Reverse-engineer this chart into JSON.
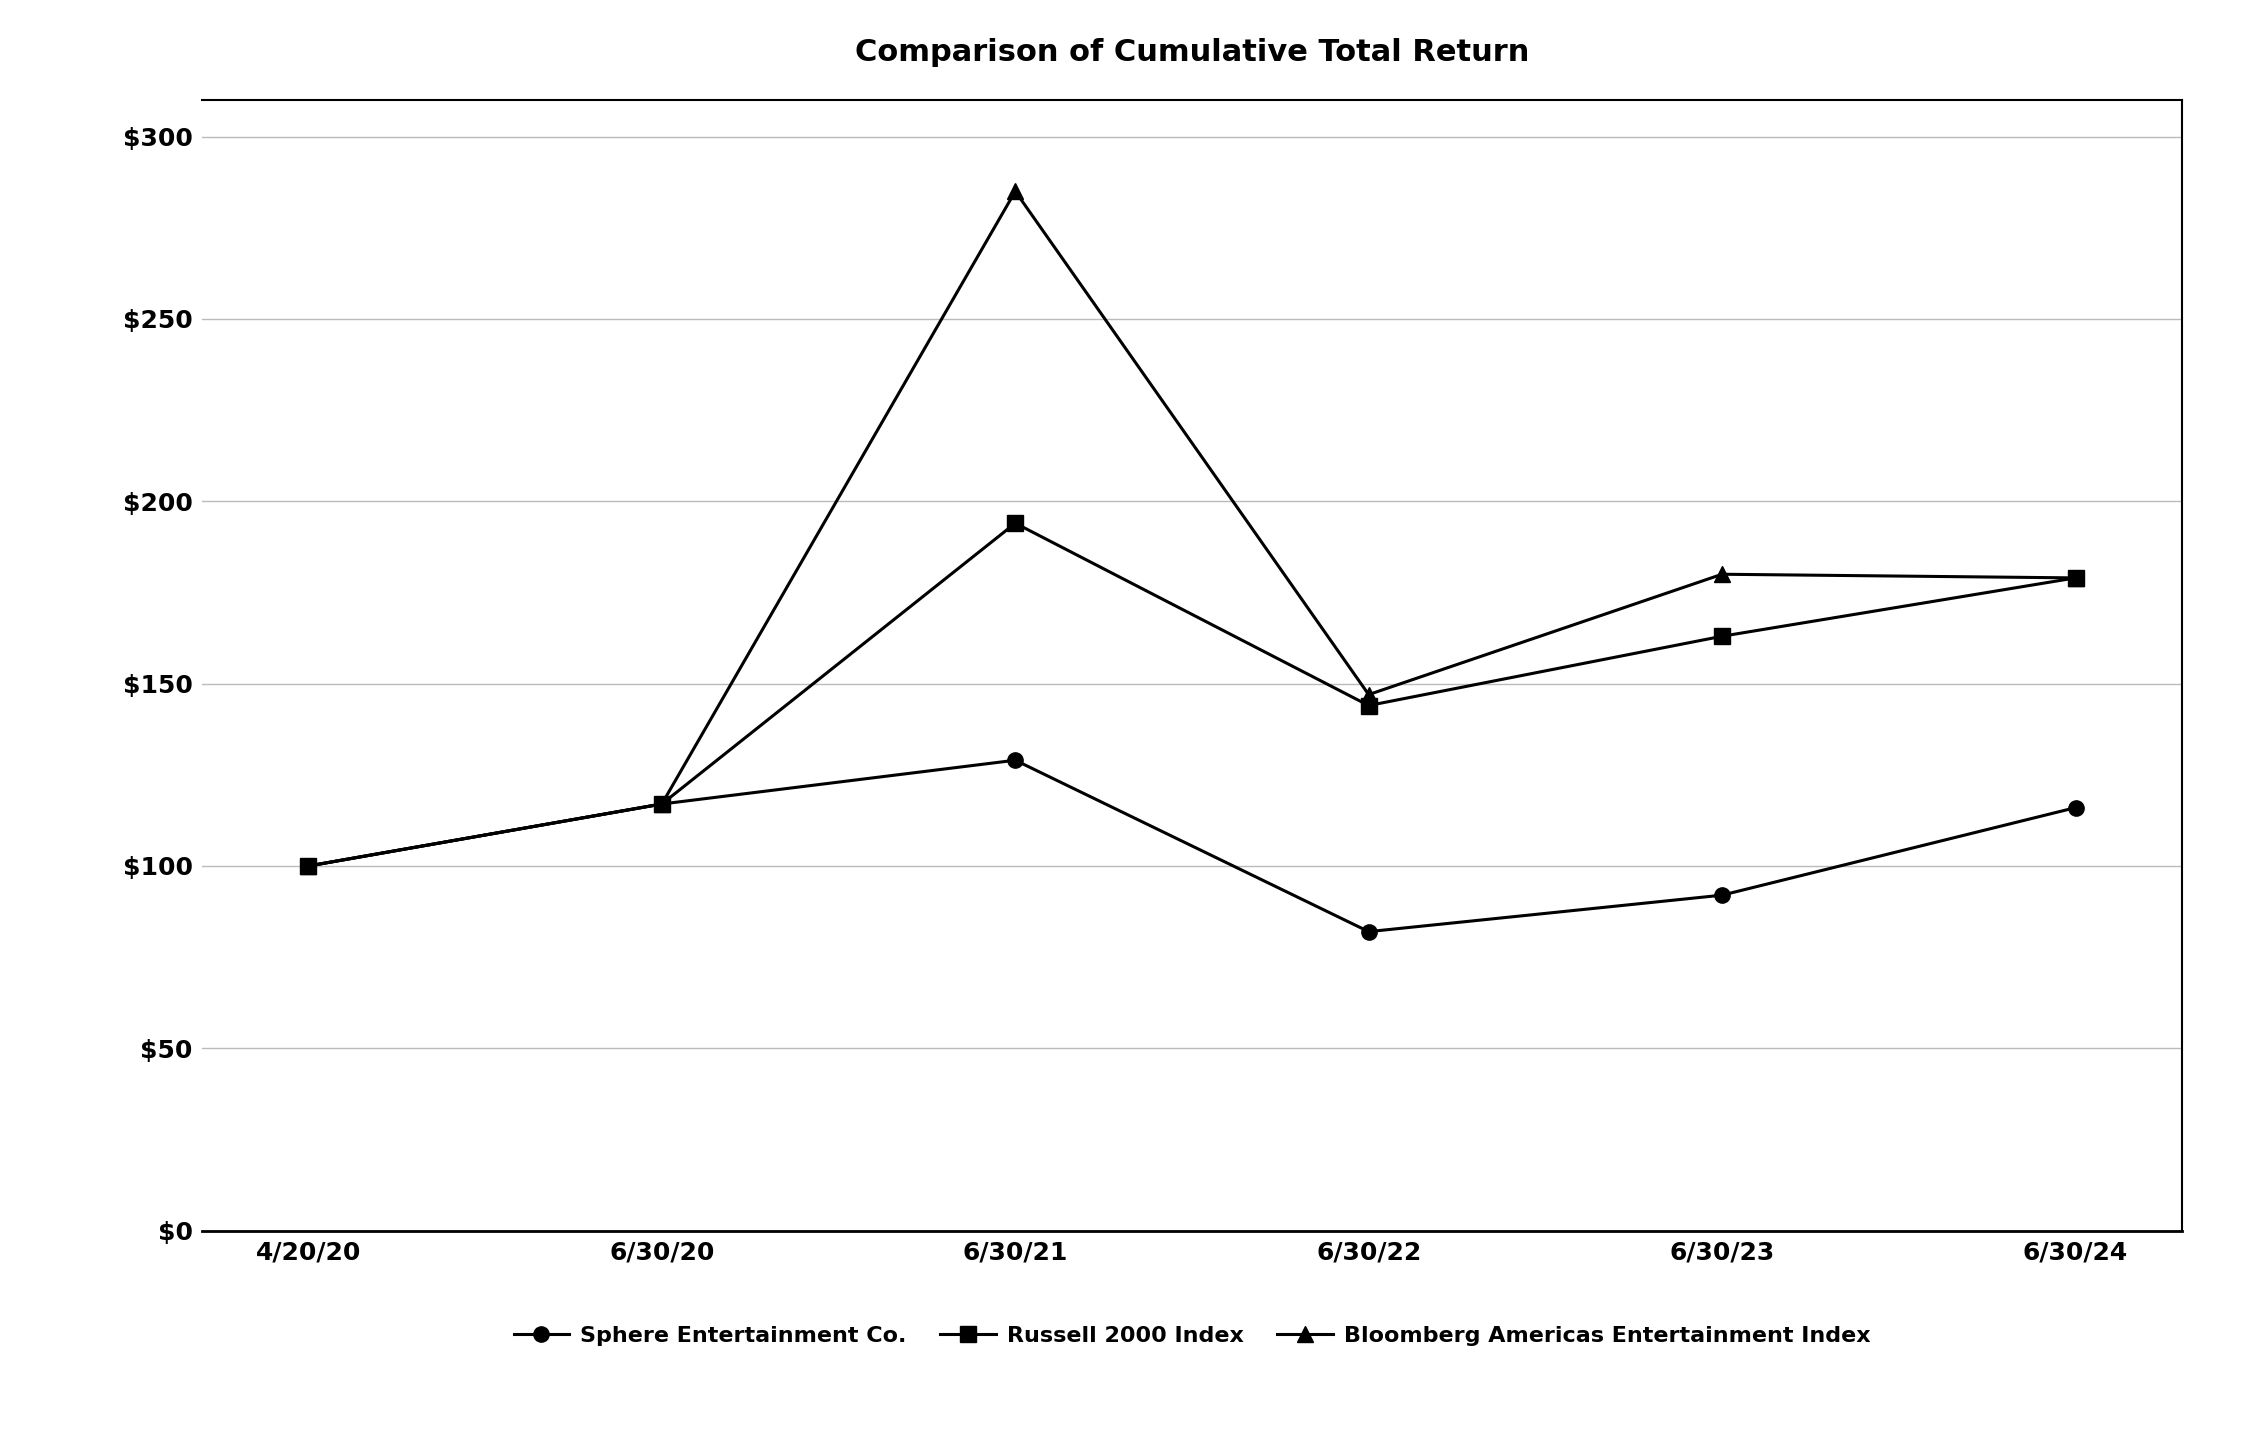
{
  "title": "Comparison of Cumulative Total Return",
  "x_labels": [
    "4/20/20",
    "6/30/20",
    "6/30/21",
    "6/30/22",
    "6/30/23",
    "6/30/24"
  ],
  "series": [
    {
      "name": "Sphere Entertainment Co.",
      "values": [
        100,
        117,
        129,
        82,
        92,
        116
      ],
      "marker": "o",
      "color": "#000000",
      "linewidth": 2.2,
      "markersize": 11
    },
    {
      "name": "Russell 2000 Index",
      "values": [
        100,
        117,
        194,
        144,
        163,
        179
      ],
      "marker": "s",
      "color": "#000000",
      "linewidth": 2.2,
      "markersize": 11
    },
    {
      "name": "Bloomberg Americas Entertainment Index",
      "values": [
        100,
        117,
        285,
        147,
        180,
        179
      ],
      "marker": "^",
      "color": "#000000",
      "linewidth": 2.2,
      "markersize": 12
    }
  ],
  "ylim": [
    0,
    310
  ],
  "yticks": [
    0,
    50,
    100,
    150,
    200,
    250,
    300
  ],
  "ytick_labels": [
    "$0",
    "$50",
    "$100",
    "$150",
    "$200",
    "$250",
    "$300"
  ],
  "background_color": "#ffffff",
  "grid_color": "#bbbbbb",
  "title_fontsize": 22,
  "tick_fontsize": 18,
  "legend_fontsize": 16
}
